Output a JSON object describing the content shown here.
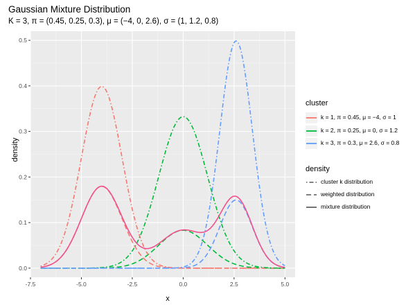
{
  "header": {
    "title": "Gaussian Mixture Distribution",
    "subtitle": "K = 3, π = (0.45, 0.25, 0.3), μ = (−4, 0, 2.6), σ = (1, 1.2, 0.8)"
  },
  "chart_data": {
    "type": "line",
    "xlabel": "x",
    "ylabel": "density",
    "xlim": [
      -7.5,
      5.5
    ],
    "ylim": [
      -0.02,
      0.52
    ],
    "x_ticks": [
      -7.5,
      -5.0,
      -2.5,
      0.0,
      2.5,
      5.0
    ],
    "x_tick_labels": [
      "-7.5",
      "-5.0",
      "-2.5",
      "0.0",
      "2.5",
      "5.0"
    ],
    "y_ticks": [
      0.0,
      0.1,
      0.2,
      0.3,
      0.4,
      0.5
    ],
    "y_tick_labels": [
      "0.0",
      "0.1",
      "0.2",
      "0.3",
      "0.4",
      "0.5"
    ],
    "x_range_drawn": [
      -7,
      5
    ],
    "grid": true,
    "background": "#EBEBEB",
    "clusters": [
      {
        "k": 1,
        "pi": 0.45,
        "mu": -4,
        "sigma": 1,
        "color": "#F8766D",
        "label": "k = 1, π = 0.45, μ = −4, σ = 1"
      },
      {
        "k": 2,
        "pi": 0.25,
        "mu": 0,
        "sigma": 1.2,
        "color": "#00BA38",
        "label": "k = 2, π = 0.25, μ = 0, σ = 1.2"
      },
      {
        "k": 3,
        "pi": 0.3,
        "mu": 2.6,
        "sigma": 0.8,
        "color": "#619CFF",
        "label": "k = 3, π = 0.3, μ = 2.6, σ = 0.8"
      }
    ],
    "mixture_color": "#F0508C",
    "legend": {
      "position": "right",
      "cluster_title": "cluster",
      "density_title": "density",
      "density_items": [
        {
          "label": "cluster k distribution",
          "linetype": "dotdash"
        },
        {
          "label": "weighted distribution",
          "linetype": "longdash"
        },
        {
          "label": "mixture distribution",
          "linetype": "solid"
        }
      ]
    }
  }
}
